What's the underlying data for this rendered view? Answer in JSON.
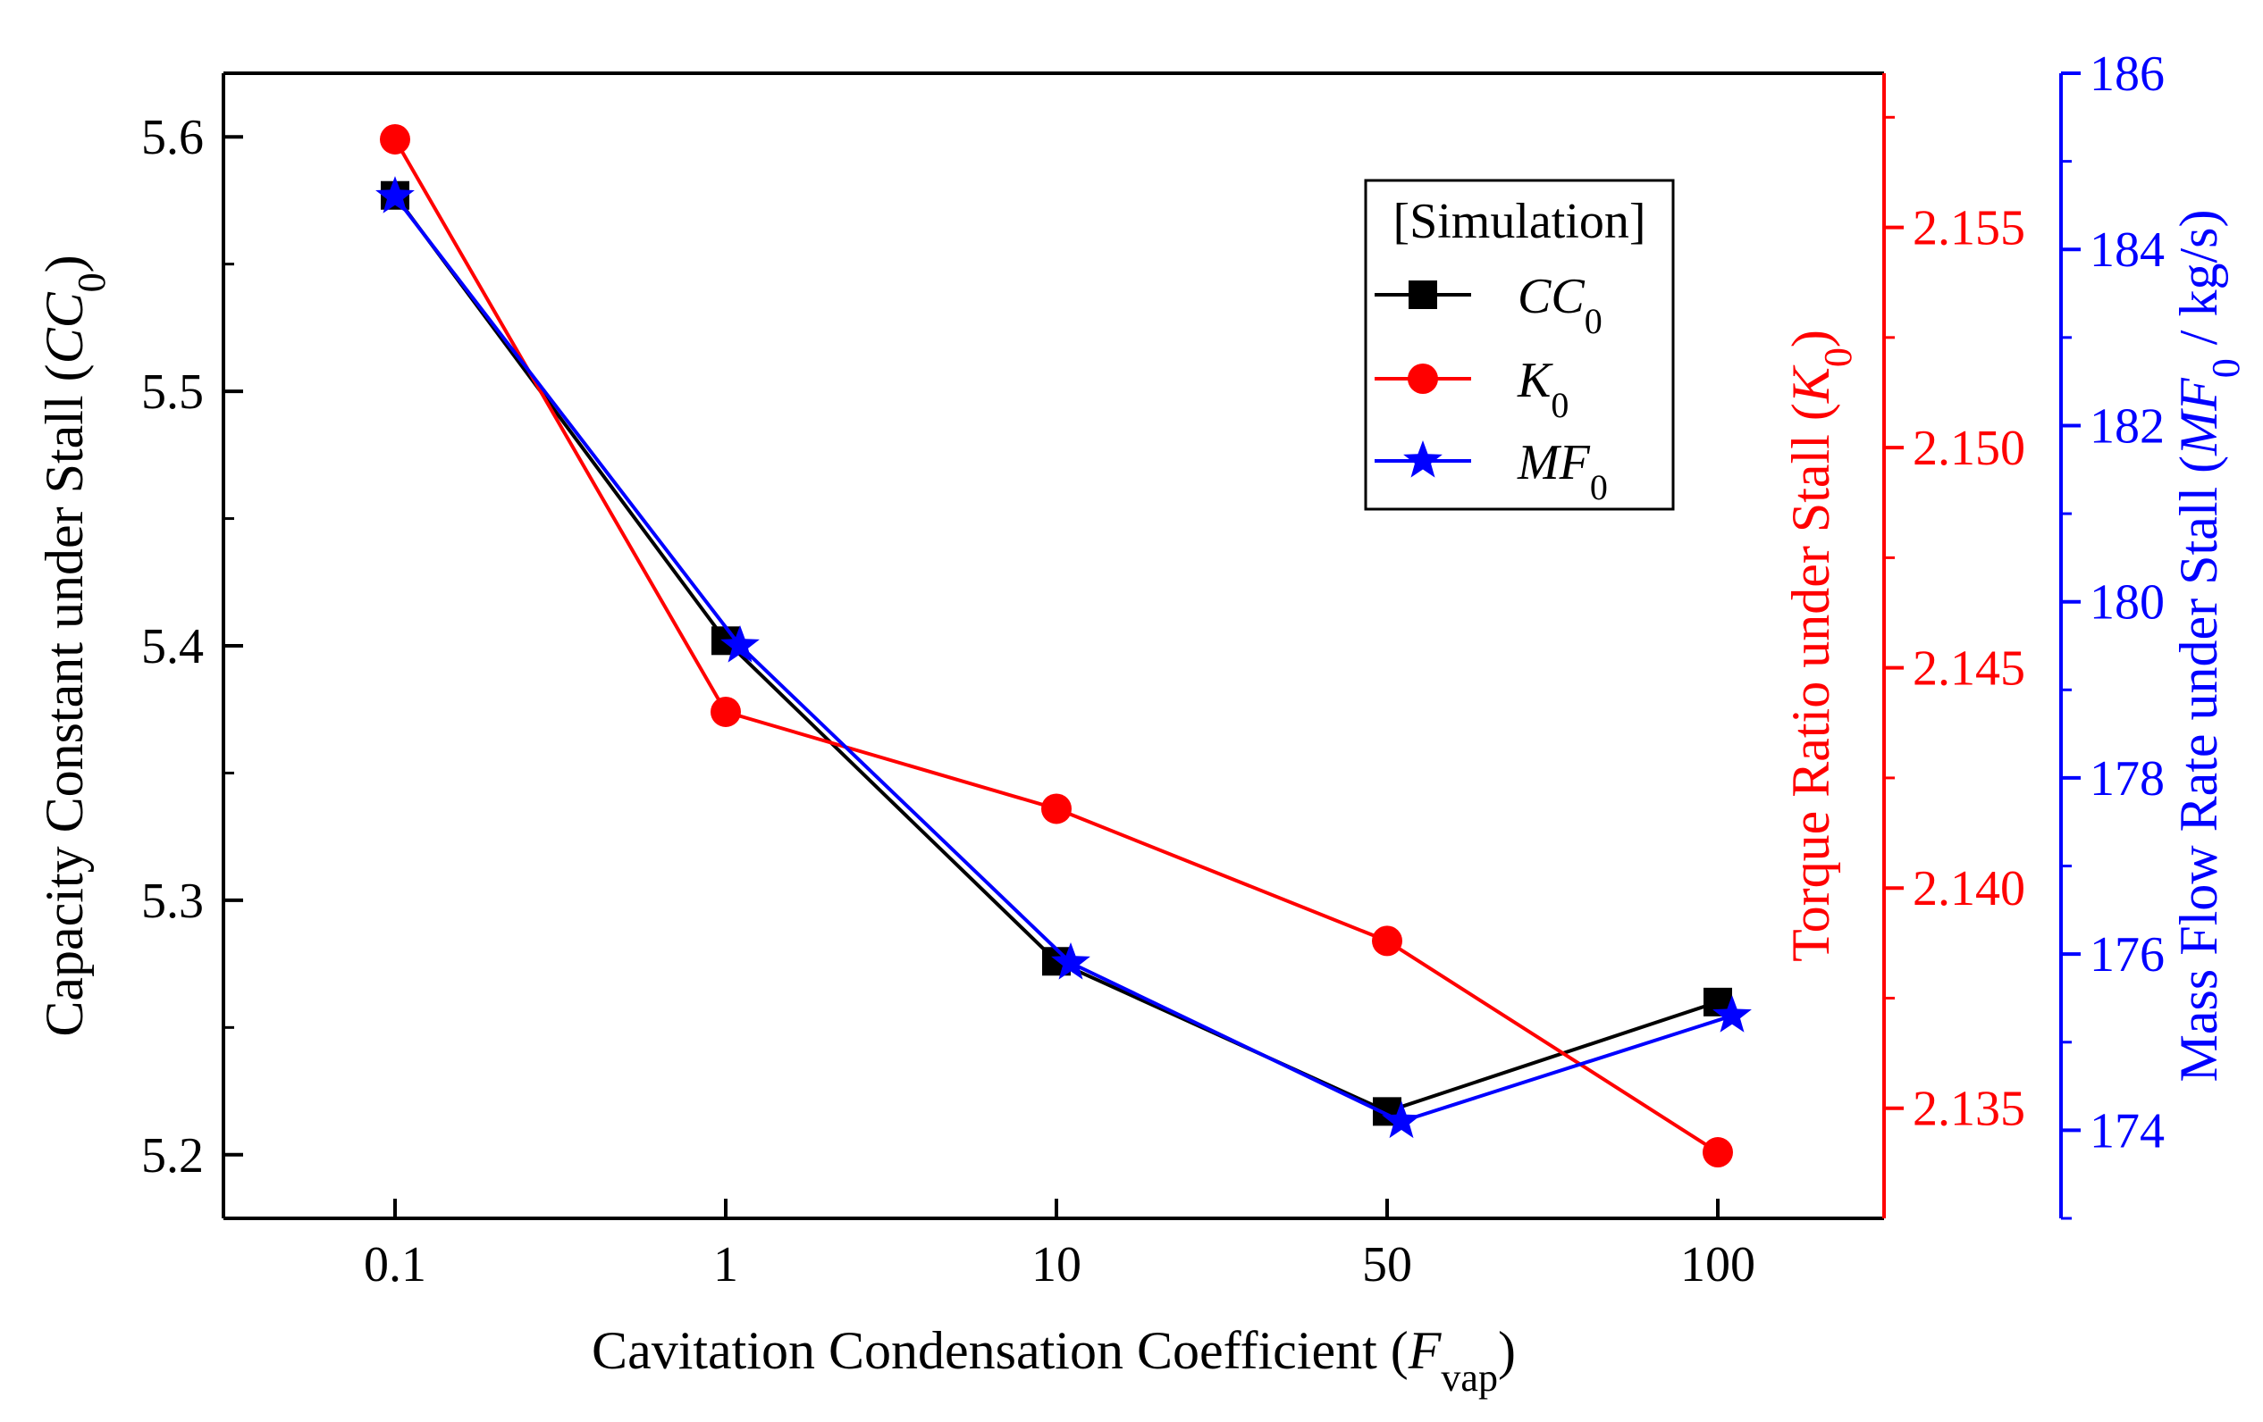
{
  "chart_data": {
    "type": "line",
    "xlabel": {
      "main": "Cavitation Condensation Coefficient (",
      "sym": "F",
      "sub": "vap",
      "tail": ")"
    },
    "ylabel_left": {
      "main": "Capacity Constant under Stall (",
      "sym": "CC",
      "sub": "0",
      "tail": ")"
    },
    "ylabel_right1": {
      "main": "Torque Ratio under Stall (",
      "sym": "K",
      "sub": "0",
      "tail": ")"
    },
    "ylabel_right2": {
      "main": "Mass Flow Rate under Stall (",
      "sym": "MF",
      "sub": "0",
      "tail": " / kg/s)"
    },
    "categories": [
      "0.1",
      "1",
      "10",
      "50",
      "100"
    ],
    "axes": {
      "left": {
        "ylim": [
          5.175,
          5.625
        ],
        "ticks": [
          5.2,
          5.3,
          5.4,
          5.5,
          5.6
        ],
        "labels": [
          "5.2",
          "5.3",
          "5.4",
          "5.5",
          "5.6"
        ],
        "color": "#000000"
      },
      "right1": {
        "ylim": [
          2.1325,
          2.1585
        ],
        "ticks": [
          2.135,
          2.14,
          2.145,
          2.15,
          2.155
        ],
        "labels": [
          "2.135",
          "2.140",
          "2.145",
          "2.150",
          "2.155"
        ],
        "color": "#ff0000"
      },
      "right2": {
        "ylim": [
          173.0,
          186.0
        ],
        "ticks": [
          174,
          176,
          178,
          180,
          182,
          184,
          186
        ],
        "labels": [
          "174",
          "176",
          "178",
          "180",
          "182",
          "184",
          "186"
        ],
        "color": "#0000ff"
      }
    },
    "series": [
      {
        "name": "CC0",
        "axis": "left",
        "color": "#000000",
        "marker": "square",
        "values": [
          5.577,
          5.402,
          5.276,
          5.217,
          5.26
        ]
      },
      {
        "name": "K0",
        "axis": "right1",
        "color": "#ff0000",
        "marker": "circle",
        "values": [
          2.157,
          2.144,
          2.1418,
          2.1388,
          2.134
        ]
      },
      {
        "name": "MF0",
        "axis": "right2",
        "color": "#0000ff",
        "marker": "star",
        "values": [
          184.6,
          179.5,
          175.9,
          174.1,
          175.3
        ]
      }
    ],
    "legend": {
      "title": "[Simulation]",
      "position": "top-right",
      "items": [
        {
          "sym": "CC",
          "sub": "0"
        },
        {
          "sym": "K",
          "sub": "0"
        },
        {
          "sym": "MF",
          "sub": "0"
        }
      ]
    },
    "grid": false
  }
}
